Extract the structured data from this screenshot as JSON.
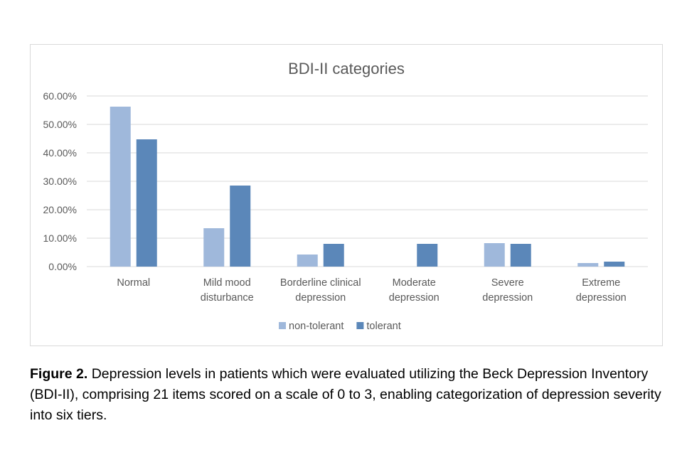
{
  "chart_data": {
    "type": "bar",
    "title": "BDI-II categories",
    "xlabel": "",
    "ylabel": "",
    "ylim": [
      0,
      60
    ],
    "yticks": [
      "0.00%",
      "10.00%",
      "20.00%",
      "30.00%",
      "40.00%",
      "50.00%",
      "60.00%"
    ],
    "grid": true,
    "legend_position": "bottom",
    "categories": [
      [
        "Normal"
      ],
      [
        "Mild mood",
        "disturbance"
      ],
      [
        "Borderline clinical",
        "depression"
      ],
      [
        "Moderate",
        "depression"
      ],
      [
        "Severe",
        "depression"
      ],
      [
        "Extreme",
        "depression"
      ]
    ],
    "series": [
      {
        "name": "non-tolerant",
        "color": "#9fb8db",
        "values": [
          56.25,
          13.5,
          4.25,
          0,
          8.25,
          1.25
        ]
      },
      {
        "name": "tolerant",
        "color": "#5b87b9",
        "values": [
          44.75,
          28.5,
          8.0,
          8.0,
          8.0,
          1.75
        ]
      }
    ]
  },
  "caption": {
    "label": "Figure 2.",
    "text": " Depression levels in patients which were evaluated utilizing the Beck Depression Inventory (BDI-II), comprising 21 items scored on a scale of 0 to 3, enabling categorization of depression severity into six tiers."
  }
}
